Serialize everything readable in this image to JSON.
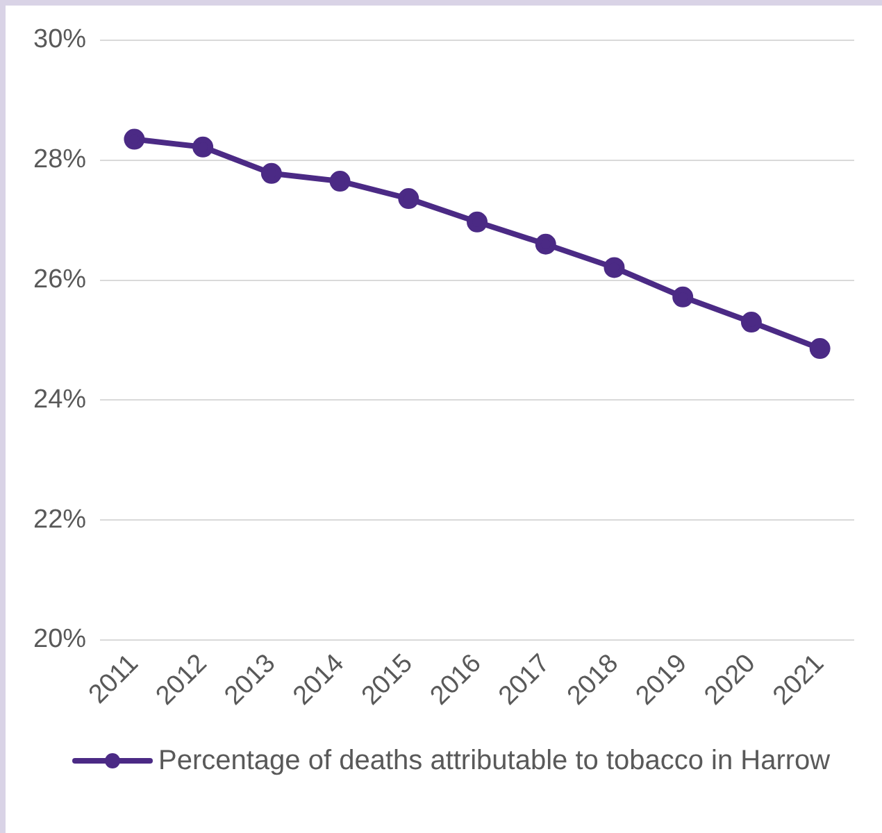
{
  "chart_data": {
    "type": "line",
    "categories": [
      "2011",
      "2012",
      "2013",
      "2014",
      "2015",
      "2016",
      "2017",
      "2018",
      "2019",
      "2020",
      "2021"
    ],
    "series": [
      {
        "name": "Percentage of deaths attributable to tobacco in Harrow",
        "color": "#4b2a85",
        "values": [
          28.35,
          28.22,
          27.78,
          27.65,
          27.36,
          26.97,
          26.6,
          26.21,
          25.72,
          25.3,
          24.86
        ]
      }
    ],
    "ylim": [
      20,
      30
    ],
    "yticks": [
      {
        "value": 20,
        "label": "20%"
      },
      {
        "value": 22,
        "label": "22%"
      },
      {
        "value": 24,
        "label": "24%"
      },
      {
        "value": 26,
        "label": "26%"
      },
      {
        "value": 28,
        "label": "28%"
      },
      {
        "value": 30,
        "label": "30%"
      }
    ],
    "grid": "y",
    "legend": "bottom",
    "marker": "circle",
    "line_style": "solid"
  }
}
